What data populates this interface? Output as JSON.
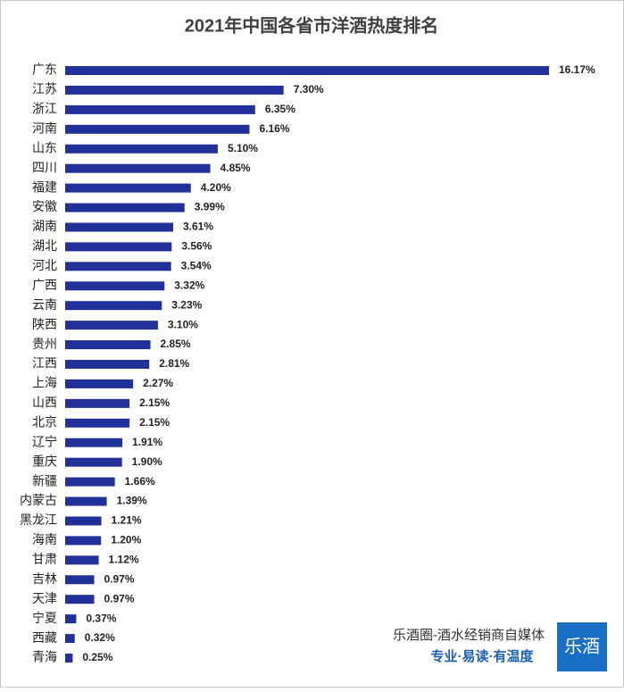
{
  "chart_data": {
    "type": "hbar",
    "title": "2021年中国各省市洋酒热度排名",
    "categories": [
      "广东",
      "江苏",
      "浙江",
      "河南",
      "山东",
      "四川",
      "福建",
      "安徽",
      "湖南",
      "湖北",
      "河北",
      "广西",
      "云南",
      "陕西",
      "贵州",
      "江西",
      "上海",
      "山西",
      "北京",
      "辽宁",
      "重庆",
      "新疆",
      "内蒙古",
      "黑龙江",
      "海南",
      "甘肃",
      "吉林",
      "天津",
      "宁夏",
      "西藏",
      "青海"
    ],
    "values": [
      16.17,
      7.3,
      6.35,
      6.16,
      5.1,
      4.85,
      4.2,
      3.99,
      3.61,
      3.56,
      3.54,
      3.32,
      3.23,
      3.1,
      2.85,
      2.81,
      2.27,
      2.15,
      2.15,
      1.91,
      1.9,
      1.66,
      1.39,
      1.21,
      1.2,
      1.12,
      0.97,
      0.97,
      0.37,
      0.32,
      0.25
    ],
    "value_labels": [
      "16.17%",
      "7.30%",
      "6.35%",
      "6.16%",
      "5.10%",
      "4.85%",
      "4.20%",
      "3.99%",
      "3.61%",
      "3.56%",
      "3.54%",
      "3.32%",
      "3.23%",
      "3.10%",
      "2.85%",
      "2.81%",
      "2.27%",
      "2.15%",
      "2.15%",
      "1.91%",
      "1.90%",
      "1.66%",
      "1.39%",
      "1.21%",
      "1.20%",
      "1.12%",
      "0.97%",
      "0.97%",
      "0.37%",
      "0.32%",
      "0.25%"
    ],
    "color": "#22319a"
  },
  "branding": {
    "source": "乐酒圈-酒水经销商自媒体",
    "slogan": "专业·易读·有温度",
    "logo": "乐酒"
  }
}
